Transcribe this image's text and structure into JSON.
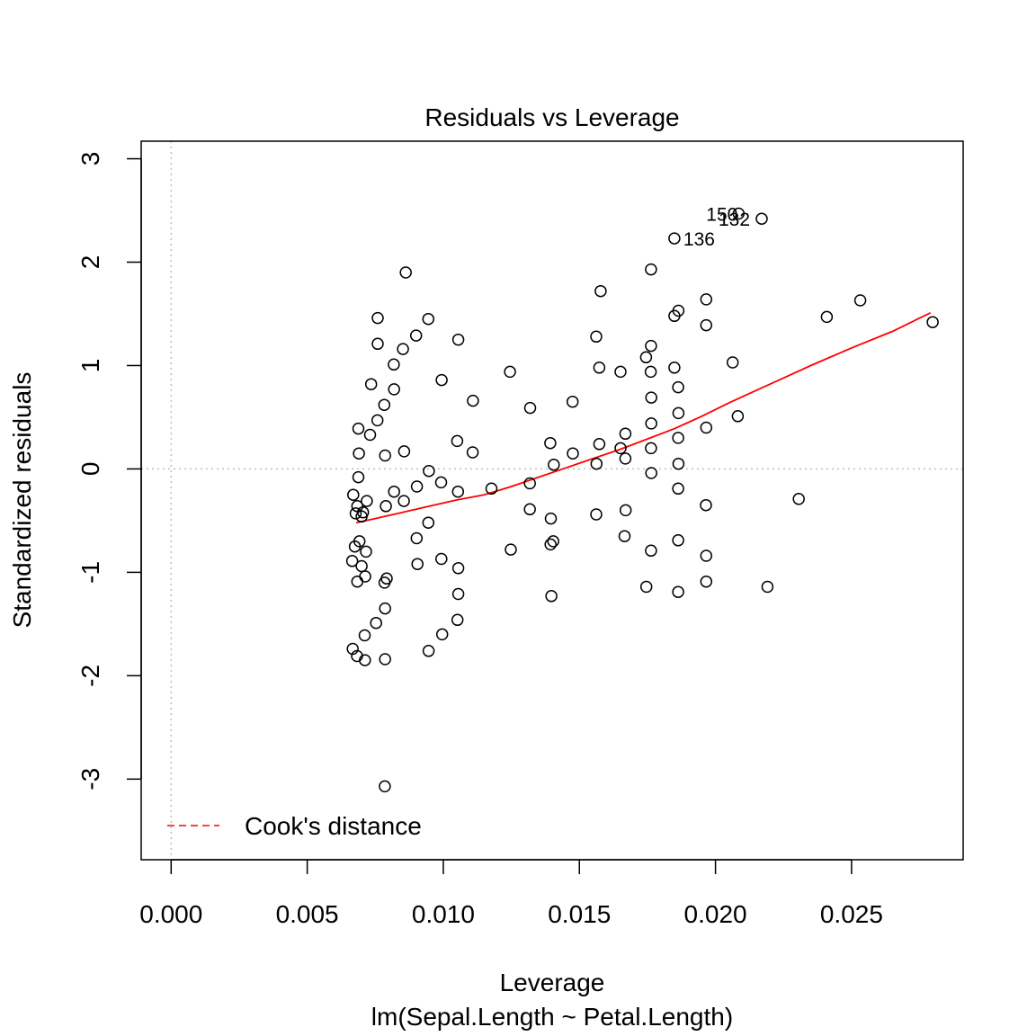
{
  "chart_data": {
    "type": "scatter",
    "title": "Residuals vs Leverage",
    "xlabel": "Leverage",
    "xsublabel": "lm(Sepal.Length ~ Petal.Length)",
    "ylabel": "Standardized residuals",
    "xlim": [
      -0.0011,
      0.0291
    ],
    "ylim": [
      -3.78,
      3.17
    ],
    "xticks": [
      0.0,
      0.005,
      0.01,
      0.015,
      0.02,
      0.025
    ],
    "xtick_labels": [
      "0.000",
      "0.005",
      "0.010",
      "0.015",
      "0.020",
      "0.025"
    ],
    "yticks": [
      -3,
      -2,
      -1,
      0,
      1,
      2,
      3
    ],
    "ytick_labels": [
      "-3",
      "-2",
      "-1",
      "0",
      "1",
      "2",
      "3"
    ],
    "reference_lines": {
      "x": 0,
      "y": 0,
      "color": "#bebebe",
      "style": "dotted"
    },
    "legend": {
      "label": "Cook's distance",
      "color": "#ff0000",
      "style": "dashed",
      "position": "bottom-left"
    },
    "smooth_color": "#ff0000",
    "point_color": "#000000",
    "points": [
      [
        0.00667,
        -1.74
      ],
      [
        0.00675,
        -0.75
      ],
      [
        0.00665,
        -0.89
      ],
      [
        0.00669,
        -0.25
      ],
      [
        0.00678,
        -0.43
      ],
      [
        0.00683,
        -1.81
      ],
      [
        0.00684,
        -1.09
      ],
      [
        0.00684,
        -0.36
      ],
      [
        0.00688,
        0.39
      ],
      [
        0.0069,
        0.15
      ],
      [
        0.00688,
        -0.08
      ],
      [
        0.007,
        -0.46
      ],
      [
        0.00692,
        -0.7
      ],
      [
        0.007,
        -0.94
      ],
      [
        0.00705,
        -0.42
      ],
      [
        0.00711,
        -1.61
      ],
      [
        0.00712,
        -1.85
      ],
      [
        0.00713,
        -1.04
      ],
      [
        0.00716,
        -0.8
      ],
      [
        0.00719,
        -0.31
      ],
      [
        0.00731,
        0.33
      ],
      [
        0.00735,
        0.82
      ],
      [
        0.00753,
        -1.49
      ],
      [
        0.00758,
        0.47
      ],
      [
        0.00759,
        1.21
      ],
      [
        0.00759,
        1.46
      ],
      [
        0.00783,
        0.62
      ],
      [
        0.00784,
        -1.1
      ],
      [
        0.00786,
        -1.35
      ],
      [
        0.00786,
        -1.84
      ],
      [
        0.00785,
        -3.07
      ],
      [
        0.00792,
        -1.06
      ],
      [
        0.00786,
        0.13
      ],
      [
        0.00789,
        -0.36
      ],
      [
        0.00819,
        0.77
      ],
      [
        0.00818,
        1.01
      ],
      [
        0.00819,
        -0.22
      ],
      [
        0.00852,
        1.16
      ],
      [
        0.00856,
        0.17
      ],
      [
        0.00862,
        1.9
      ],
      [
        0.00855,
        -0.31
      ],
      [
        0.009,
        1.29
      ],
      [
        0.00902,
        -0.67
      ],
      [
        0.00905,
        -0.92
      ],
      [
        0.00903,
        -0.17
      ],
      [
        0.00945,
        1.45
      ],
      [
        0.00947,
        -0.02
      ],
      [
        0.00946,
        -1.76
      ],
      [
        0.00945,
        -0.52
      ],
      [
        0.00994,
        0.86
      ],
      [
        0.00992,
        -0.13
      ],
      [
        0.00993,
        -0.87
      ],
      [
        0.00996,
        -1.6
      ],
      [
        0.01055,
        1.25
      ],
      [
        0.01051,
        0.27
      ],
      [
        0.01054,
        -0.22
      ],
      [
        0.01055,
        -0.96
      ],
      [
        0.01055,
        -1.21
      ],
      [
        0.01052,
        -1.46
      ],
      [
        0.01109,
        0.66
      ],
      [
        0.01108,
        0.16
      ],
      [
        0.01177,
        -0.19
      ],
      [
        0.01245,
        0.94
      ],
      [
        0.01248,
        -0.78
      ],
      [
        0.01319,
        0.59
      ],
      [
        0.01318,
        -0.14
      ],
      [
        0.01318,
        -0.39
      ],
      [
        0.01393,
        0.25
      ],
      [
        0.01395,
        -0.48
      ],
      [
        0.01397,
        -1.23
      ],
      [
        0.01394,
        -0.73
      ],
      [
        0.01406,
        0.04
      ],
      [
        0.01404,
        -0.7
      ],
      [
        0.01475,
        0.65
      ],
      [
        0.01476,
        0.15
      ],
      [
        0.01562,
        1.28
      ],
      [
        0.01563,
        0.05
      ],
      [
        0.01562,
        -0.44
      ],
      [
        0.01578,
        1.72
      ],
      [
        0.01573,
        0.98
      ],
      [
        0.01573,
        0.24
      ],
      [
        0.01651,
        0.94
      ],
      [
        0.01651,
        0.2
      ],
      [
        0.01669,
        0.34
      ],
      [
        0.01669,
        0.1
      ],
      [
        0.0167,
        -0.4
      ],
      [
        0.01666,
        -0.65
      ],
      [
        0.01745,
        1.08
      ],
      [
        0.01746,
        -1.14
      ],
      [
        0.01763,
        1.93
      ],
      [
        0.01763,
        1.19
      ],
      [
        0.01762,
        0.94
      ],
      [
        0.01764,
        0.69
      ],
      [
        0.01764,
        0.44
      ],
      [
        0.01763,
        0.2
      ],
      [
        0.01764,
        -0.04
      ],
      [
        0.01763,
        -0.79
      ],
      [
        0.01849,
        2.23
      ],
      [
        0.01849,
        1.48
      ],
      [
        0.01849,
        0.98
      ],
      [
        0.01864,
        1.53
      ],
      [
        0.01863,
        0.79
      ],
      [
        0.01864,
        0.54
      ],
      [
        0.01863,
        0.3
      ],
      [
        0.01864,
        0.05
      ],
      [
        0.01863,
        -0.19
      ],
      [
        0.01863,
        -0.69
      ],
      [
        0.01863,
        -1.19
      ],
      [
        0.01966,
        1.64
      ],
      [
        0.01966,
        1.39
      ],
      [
        0.01966,
        0.4
      ],
      [
        0.01965,
        -0.35
      ],
      [
        0.01966,
        -0.84
      ],
      [
        0.01966,
        -1.09
      ],
      [
        0.02063,
        1.03
      ],
      [
        0.02082,
        0.51
      ],
      [
        0.02085,
        2.47
      ],
      [
        0.0217,
        2.42
      ],
      [
        0.02191,
        -1.14
      ],
      [
        0.02306,
        -0.29
      ],
      [
        0.02409,
        1.47
      ],
      [
        0.02532,
        1.63
      ],
      [
        0.02798,
        1.42
      ]
    ],
    "point_labels": [
      {
        "text": "150",
        "x": 0.02085,
        "y": 2.47
      },
      {
        "text": "132",
        "x": 0.0217,
        "y": 2.42
      },
      {
        "text": "136",
        "x": 0.01849,
        "y": 2.23
      }
    ],
    "smooth_line": [
      [
        0.0068,
        -0.52
      ],
      [
        0.0075,
        -0.48
      ],
      [
        0.0085,
        -0.42
      ],
      [
        0.0095,
        -0.36
      ],
      [
        0.0105,
        -0.3
      ],
      [
        0.0115,
        -0.25
      ],
      [
        0.0125,
        -0.17
      ],
      [
        0.0135,
        -0.08
      ],
      [
        0.0145,
        0.01
      ],
      [
        0.0155,
        0.1
      ],
      [
        0.0165,
        0.19
      ],
      [
        0.0175,
        0.29
      ],
      [
        0.0185,
        0.39
      ],
      [
        0.0195,
        0.51
      ],
      [
        0.0205,
        0.64
      ],
      [
        0.0215,
        0.76
      ],
      [
        0.0225,
        0.88
      ],
      [
        0.0235,
        1.0
      ],
      [
        0.025,
        1.17
      ],
      [
        0.0265,
        1.33
      ],
      [
        0.0279,
        1.51
      ]
    ]
  }
}
